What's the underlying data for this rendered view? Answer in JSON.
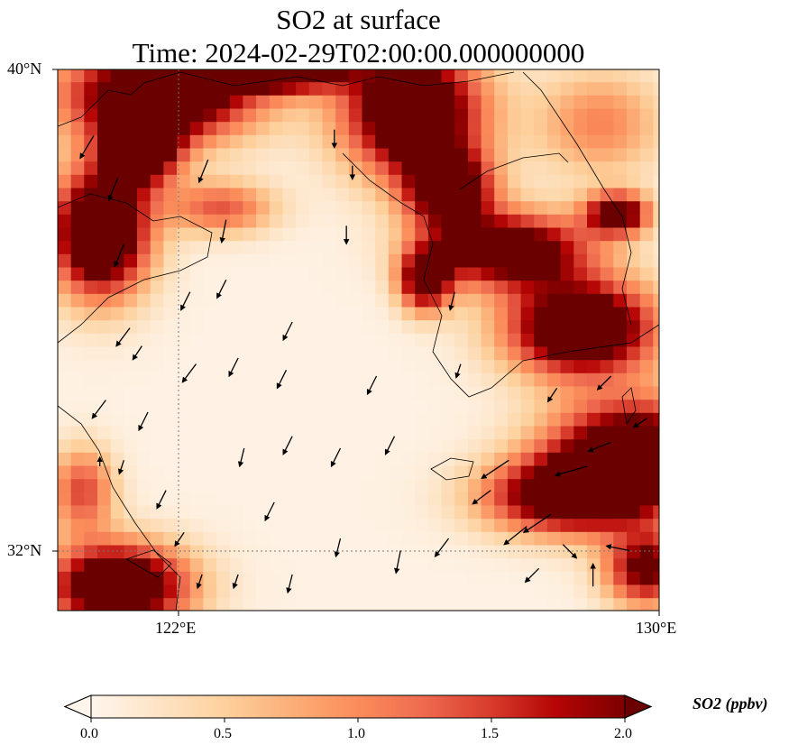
{
  "chart_data": {
    "type": "heatmap",
    "title_line1": "SO2 at surface",
    "title_line2": "Time: 2024-02-29T02:00:00.000000000",
    "lon_range": [
      120,
      130
    ],
    "lat_range": [
      31,
      40
    ],
    "lon_ticks": [
      {
        "value": 122,
        "label": "122°E"
      },
      {
        "value": 130,
        "label": "130°E"
      }
    ],
    "lat_ticks": [
      {
        "value": 40,
        "label": "40°N"
      },
      {
        "value": 32,
        "label": "32°N"
      }
    ],
    "gridlines": {
      "lon": [
        122
      ],
      "lat": [
        32
      ]
    },
    "colorbar": {
      "label": "SO2 (ppbv)",
      "vmin": 0,
      "vmax": 2,
      "extend": "both",
      "ticks": [
        "0.0",
        "0.5",
        "1.0",
        "1.5",
        "2.0"
      ],
      "colors": [
        "#fff5eb",
        "#fde3c4",
        "#fdd09c",
        "#fcae77",
        "#fb8c5a",
        "#ee6a4f",
        "#d83c2c",
        "#b50505",
        "#7f0000"
      ]
    },
    "so2_plumes": [
      {
        "lon": 121.6,
        "lat": 39.5,
        "rlon": 1.8,
        "rlat": 0.9,
        "value": 3.0
      },
      {
        "lon": 121.3,
        "lat": 38.6,
        "rlon": 0.7,
        "rlat": 0.7,
        "value": 2.6
      },
      {
        "lon": 120.6,
        "lat": 37.2,
        "rlon": 0.9,
        "rlat": 1.2,
        "value": 3.2
      },
      {
        "lon": 125.8,
        "lat": 39.2,
        "rlon": 1.3,
        "rlat": 1.2,
        "value": 3.0
      },
      {
        "lon": 126.4,
        "lat": 37.9,
        "rlon": 0.8,
        "rlat": 0.7,
        "value": 2.6
      },
      {
        "lon": 127.4,
        "lat": 36.9,
        "rlon": 1.5,
        "rlat": 0.7,
        "value": 2.6
      },
      {
        "lon": 126.0,
        "lat": 36.4,
        "rlon": 0.5,
        "rlat": 0.6,
        "value": 2.3
      },
      {
        "lon": 129.2,
        "lat": 37.5,
        "rlon": 0.6,
        "rlat": 0.4,
        "value": 2.4
      },
      {
        "lon": 128.6,
        "lat": 35.6,
        "rlon": 1.4,
        "rlat": 0.9,
        "value": 3.0
      },
      {
        "lon": 129.5,
        "lat": 33.5,
        "rlon": 1.6,
        "rlat": 1.0,
        "value": 3.0
      },
      {
        "lon": 128.3,
        "lat": 32.8,
        "rlon": 1.5,
        "rlat": 0.7,
        "value": 2.4
      },
      {
        "lon": 129.7,
        "lat": 31.6,
        "rlon": 0.8,
        "rlat": 0.7,
        "value": 2.2
      },
      {
        "lon": 120.9,
        "lat": 31.3,
        "rlon": 1.3,
        "rlat": 0.8,
        "value": 3.0
      },
      {
        "lon": 120.3,
        "lat": 32.9,
        "rlon": 0.6,
        "rlat": 0.8,
        "value": 1.4
      },
      {
        "lon": 122.6,
        "lat": 37.6,
        "rlon": 1.0,
        "rlat": 0.5,
        "value": 1.3
      },
      {
        "lon": 128.9,
        "lat": 39.0,
        "rlon": 1.2,
        "rlat": 1.0,
        "value": 1.0
      },
      {
        "lon": 123.6,
        "lat": 39.9,
        "rlon": 1.3,
        "rlat": 0.4,
        "value": 2.8
      }
    ],
    "wind_vectors": [
      {
        "lon": 120.6,
        "lat": 38.9,
        "u": -0.3,
        "v": -0.5
      },
      {
        "lon": 121.0,
        "lat": 38.2,
        "u": -0.2,
        "v": -0.5
      },
      {
        "lon": 121.1,
        "lat": 37.1,
        "u": -0.2,
        "v": -0.5
      },
      {
        "lon": 121.2,
        "lat": 35.7,
        "u": -0.3,
        "v": -0.4
      },
      {
        "lon": 120.8,
        "lat": 34.5,
        "u": -0.3,
        "v": -0.4
      },
      {
        "lon": 121.5,
        "lat": 34.3,
        "u": -0.2,
        "v": -0.4
      },
      {
        "lon": 121.4,
        "lat": 35.4,
        "u": -0.2,
        "v": -0.3
      },
      {
        "lon": 121.1,
        "lat": 33.5,
        "u": -0.1,
        "v": -0.3
      },
      {
        "lon": 121.8,
        "lat": 33.0,
        "u": -0.2,
        "v": -0.4
      },
      {
        "lon": 122.1,
        "lat": 32.3,
        "u": -0.2,
        "v": -0.3
      },
      {
        "lon": 122.4,
        "lat": 31.6,
        "u": -0.1,
        "v": -0.3
      },
      {
        "lon": 122.2,
        "lat": 36.3,
        "u": -0.2,
        "v": -0.4
      },
      {
        "lon": 122.3,
        "lat": 35.1,
        "u": -0.3,
        "v": -0.4
      },
      {
        "lon": 122.5,
        "lat": 38.5,
        "u": -0.2,
        "v": -0.5
      },
      {
        "lon": 122.8,
        "lat": 37.5,
        "u": -0.1,
        "v": -0.5
      },
      {
        "lon": 122.8,
        "lat": 36.5,
        "u": -0.2,
        "v": -0.4
      },
      {
        "lon": 123.0,
        "lat": 35.2,
        "u": -0.2,
        "v": -0.4
      },
      {
        "lon": 123.1,
        "lat": 33.7,
        "u": -0.1,
        "v": -0.4
      },
      {
        "lon": 123.6,
        "lat": 32.8,
        "u": -0.2,
        "v": -0.4
      },
      {
        "lon": 123.0,
        "lat": 31.6,
        "u": -0.1,
        "v": -0.3
      },
      {
        "lon": 123.9,
        "lat": 31.6,
        "u": -0.1,
        "v": -0.4
      },
      {
        "lon": 123.9,
        "lat": 35.8,
        "u": -0.2,
        "v": -0.4
      },
      {
        "lon": 123.8,
        "lat": 35.0,
        "u": -0.2,
        "v": -0.4
      },
      {
        "lon": 123.9,
        "lat": 33.9,
        "u": -0.2,
        "v": -0.4
      },
      {
        "lon": 124.7,
        "lat": 33.7,
        "u": -0.2,
        "v": -0.4
      },
      {
        "lon": 124.7,
        "lat": 32.2,
        "u": -0.1,
        "v": -0.4
      },
      {
        "lon": 124.8,
        "lat": 37.4,
        "u": 0.0,
        "v": -0.4
      },
      {
        "lon": 124.6,
        "lat": 39.0,
        "u": 0.0,
        "v": -0.4
      },
      {
        "lon": 124.9,
        "lat": 38.4,
        "u": 0.0,
        "v": -0.3
      },
      {
        "lon": 125.3,
        "lat": 34.9,
        "u": -0.2,
        "v": -0.4
      },
      {
        "lon": 125.6,
        "lat": 33.9,
        "u": -0.2,
        "v": -0.4
      },
      {
        "lon": 125.7,
        "lat": 32.0,
        "u": -0.1,
        "v": -0.5
      },
      {
        "lon": 126.5,
        "lat": 32.2,
        "u": -0.3,
        "v": -0.4
      },
      {
        "lon": 126.6,
        "lat": 36.3,
        "u": -0.1,
        "v": -0.4
      },
      {
        "lon": 126.7,
        "lat": 35.1,
        "u": -0.1,
        "v": -0.3
      },
      {
        "lon": 127.2,
        "lat": 33.0,
        "u": -0.4,
        "v": -0.3
      },
      {
        "lon": 127.5,
        "lat": 33.5,
        "u": -0.6,
        "v": -0.4
      },
      {
        "lon": 127.8,
        "lat": 32.4,
        "u": -0.5,
        "v": -0.4
      },
      {
        "lon": 128.2,
        "lat": 32.6,
        "u": -0.6,
        "v": -0.4
      },
      {
        "lon": 128.4,
        "lat": 32.1,
        "u": 0.3,
        "v": -0.3
      },
      {
        "lon": 128.0,
        "lat": 31.7,
        "u": -0.3,
        "v": -0.3
      },
      {
        "lon": 128.8,
        "lat": 33.4,
        "u": -0.7,
        "v": -0.2
      },
      {
        "lon": 129.2,
        "lat": 33.8,
        "u": -0.5,
        "v": -0.2
      },
      {
        "lon": 129.5,
        "lat": 32.0,
        "u": -0.5,
        "v": 0.1
      },
      {
        "lon": 128.9,
        "lat": 31.4,
        "u": 0.0,
        "v": 0.5
      },
      {
        "lon": 129.8,
        "lat": 34.2,
        "u": -0.3,
        "v": -0.2
      },
      {
        "lon": 129.2,
        "lat": 34.9,
        "u": -0.3,
        "v": -0.3
      },
      {
        "lon": 128.3,
        "lat": 34.7,
        "u": -0.2,
        "v": -0.3
      },
      {
        "lon": 120.7,
        "lat": 33.4,
        "u": 0.0,
        "v": 0.2
      }
    ]
  }
}
